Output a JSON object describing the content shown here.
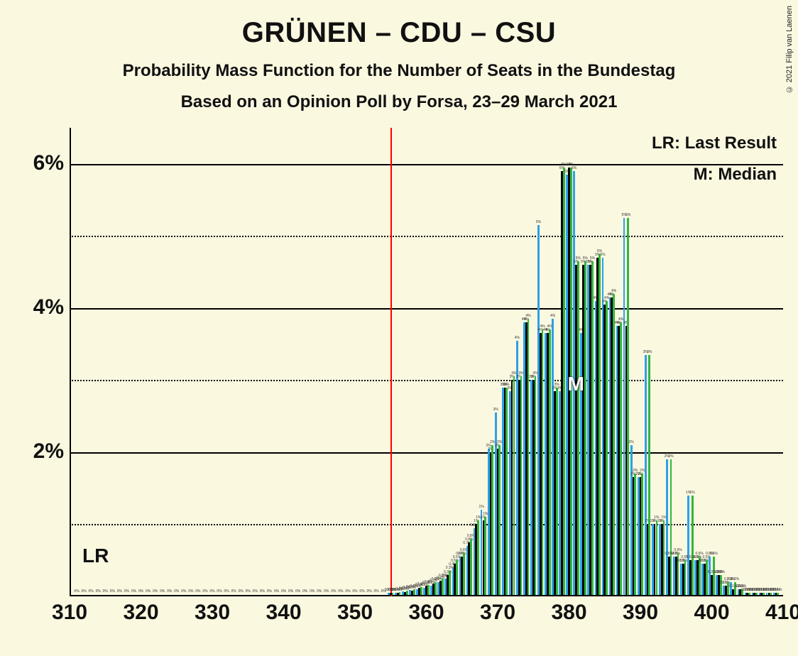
{
  "title": "GRÜNEN – CDU – CSU",
  "subtitle1": "Probability Mass Function for the Number of Seats in the Bundestag",
  "subtitle2": "Based on an Opinion Poll by Forsa, 23–29 March 2021",
  "copyright": "© 2021 Filip van Laenen",
  "background_color": "#fbf8e0",
  "plot": {
    "x_min": 310,
    "x_max": 410,
    "y_min": 0,
    "y_max": 6.5,
    "y_ticks_major": [
      2,
      4,
      6
    ],
    "y_ticks_minor": [
      1,
      3,
      5
    ],
    "y_tick_labels": {
      "2": "2%",
      "4": "4%",
      "6": "6%"
    },
    "x_ticks": [
      310,
      320,
      330,
      340,
      350,
      360,
      370,
      380,
      390,
      400,
      410
    ],
    "grid_color_major": "#000000",
    "grid_color_minor": "#000000",
    "axis_color": "#000000"
  },
  "legend": {
    "lr_full": "LR: Last Result",
    "m_full": "M: Median",
    "lr_short": "LR",
    "m_short": "M"
  },
  "markers": {
    "lr_x": 355,
    "lr_color": "#ff0000",
    "median_x": 381
  },
  "series": [
    {
      "name": "blue",
      "color": "#2ea0e6",
      "offset": -1
    },
    {
      "name": "black",
      "color": "#000000",
      "offset": 0
    },
    {
      "name": "green",
      "color": "#33b540",
      "offset": 1
    }
  ],
  "bar_group_width": 8.4,
  "bar_sub_width": 2.8,
  "data": {
    "blue": {
      "355": 0.05,
      "356": 0.05,
      "357": 0.07,
      "358": 0.09,
      "359": 0.1,
      "360": 0.12,
      "361": 0.15,
      "362": 0.2,
      "363": 0.25,
      "364": 0.4,
      "365": 0.55,
      "366": 0.7,
      "367": 0.95,
      "368": 1.2,
      "369": 2.05,
      "370": 2.55,
      "371": 2.9,
      "372": 2.85,
      "373": 3.55,
      "374": 3.8,
      "375": 3.0,
      "376": 5.15,
      "377": 3.65,
      "378": 3.85,
      "379": 2.85,
      "380": 5.85,
      "381": 5.9,
      "382": 3.65,
      "383": 4.6,
      "384": 4.1,
      "385": 4.7,
      "386": 4.15,
      "387": 3.75,
      "388": 5.25,
      "389": 2.1,
      "390": 1.65,
      "391": 3.35,
      "392": 1.0,
      "393": 1.0,
      "394": 1.9,
      "395": 0.55,
      "396": 0.45,
      "397": 1.4,
      "398": 0.5,
      "399": 0.45,
      "400": 0.55,
      "401": 0.3,
      "402": 0.15,
      "403": 0.2,
      "404": 0.1,
      "405": 0.05,
      "406": 0.05,
      "407": 0.05,
      "408": 0.05,
      "409": 0.05
    },
    "black": {
      "355": 0.05,
      "356": 0.05,
      "357": 0.06,
      "358": 0.08,
      "359": 0.12,
      "360": 0.15,
      "361": 0.18,
      "362": 0.22,
      "363": 0.3,
      "364": 0.45,
      "365": 0.55,
      "366": 0.75,
      "367": 1.0,
      "368": 1.05,
      "369": 2.0,
      "370": 2.05,
      "371": 2.9,
      "372": 3.0,
      "373": 3.0,
      "374": 3.8,
      "375": 3.0,
      "376": 3.65,
      "377": 3.65,
      "378": 2.85,
      "379": 5.9,
      "380": 5.95,
      "381": 4.6,
      "382": 4.6,
      "383": 4.6,
      "384": 4.7,
      "385": 4.05,
      "386": 4.15,
      "387": 3.75,
      "388": 3.75,
      "389": 1.65,
      "390": 1.65,
      "391": 1.0,
      "392": 1.0,
      "393": 1.0,
      "394": 0.55,
      "395": 0.55,
      "396": 0.45,
      "397": 0.5,
      "398": 0.5,
      "399": 0.45,
      "400": 0.3,
      "401": 0.3,
      "402": 0.15,
      "403": 0.1,
      "404": 0.1,
      "405": 0.05,
      "406": 0.05,
      "407": 0.05,
      "408": 0.05,
      "409": 0.05
    },
    "green": {
      "355": 0.05,
      "356": 0.06,
      "357": 0.08,
      "358": 0.1,
      "359": 0.13,
      "360": 0.16,
      "361": 0.2,
      "362": 0.25,
      "363": 0.35,
      "364": 0.5,
      "365": 0.6,
      "366": 0.8,
      "367": 1.05,
      "368": 1.1,
      "369": 2.1,
      "370": 2.1,
      "371": 2.9,
      "372": 3.05,
      "373": 3.05,
      "374": 3.85,
      "375": 3.05,
      "376": 3.7,
      "377": 3.7,
      "378": 2.9,
      "379": 5.95,
      "380": 5.95,
      "381": 4.65,
      "382": 4.65,
      "383": 4.65,
      "384": 4.75,
      "385": 4.1,
      "386": 4.2,
      "387": 3.8,
      "388": 5.25,
      "389": 1.7,
      "390": 1.7,
      "391": 3.35,
      "392": 1.05,
      "393": 1.05,
      "394": 1.9,
      "395": 0.6,
      "396": 0.5,
      "397": 1.4,
      "398": 0.55,
      "399": 0.5,
      "400": 0.55,
      "401": 0.3,
      "402": 0.2,
      "403": 0.2,
      "404": 0.1,
      "405": 0.05,
      "406": 0.05,
      "407": 0.05,
      "408": 0.05,
      "409": 0.05
    }
  },
  "value_labels_on_bars": true
}
